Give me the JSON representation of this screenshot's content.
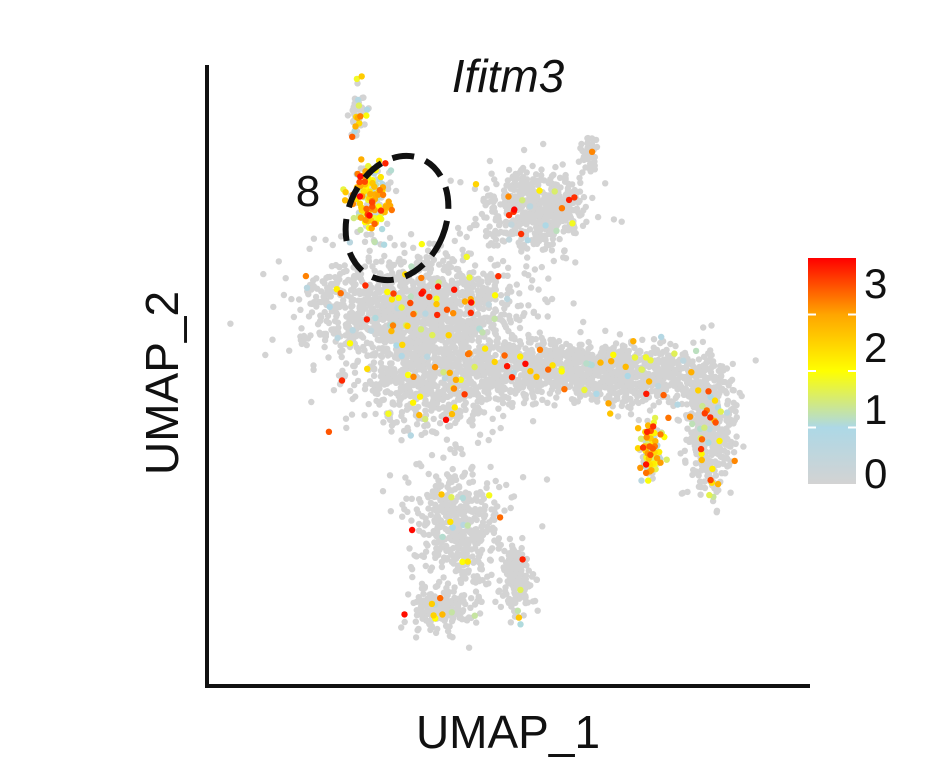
{
  "chart_data": {
    "type": "scatter",
    "title": "Ifitm3",
    "xlabel": "UMAP_1",
    "ylabel": "UMAP_2",
    "xlim": [
      -10,
      10
    ],
    "ylim": [
      -10,
      10
    ],
    "grid": false,
    "legend": "right",
    "colorbar": {
      "ticks": [
        "0",
        "1",
        "2",
        "3"
      ],
      "range": [
        0,
        3
      ],
      "colors": [
        "#d3d3d3",
        "#add8e6",
        "#ffff00",
        "#ffa500",
        "#ff0000"
      ]
    },
    "annotations": [
      {
        "label": "8",
        "x": -4.6,
        "y": 5.9,
        "shape": "dashed-ellipse"
      }
    ],
    "regions": [
      {
        "center": [
          -3.2,
          2.0
        ],
        "spread": [
          3.2,
          1.6
        ],
        "count": 1400,
        "expr_rate": 0.04
      },
      {
        "center": [
          -2.6,
          -0.3
        ],
        "spread": [
          2.4,
          1.6
        ],
        "count": 700,
        "expr_rate": 0.04
      },
      {
        "center": [
          1.2,
          0.0
        ],
        "spread": [
          2.8,
          0.8
        ],
        "count": 650,
        "expr_rate": 0.03
      },
      {
        "center": [
          4.5,
          -0.2
        ],
        "spread": [
          2.4,
          0.9
        ],
        "count": 550,
        "expr_rate": 0.03
      },
      {
        "center": [
          6.9,
          -1.8
        ],
        "spread": [
          0.8,
          1.9
        ],
        "count": 450,
        "expr_rate": 0.05
      },
      {
        "center": [
          1.0,
          5.2
        ],
        "spread": [
          1.6,
          1.2
        ],
        "count": 550,
        "expr_rate": 0.03
      },
      {
        "center": [
          -1.7,
          -5.0
        ],
        "spread": [
          1.4,
          2.0
        ],
        "count": 450,
        "expr_rate": 0.03
      },
      {
        "center": [
          -2.2,
          -7.8
        ],
        "spread": [
          1.0,
          0.6
        ],
        "count": 180,
        "expr_rate": 0.03
      },
      {
        "center": [
          0.3,
          -6.9
        ],
        "spread": [
          0.5,
          1.1
        ],
        "count": 160,
        "expr_rate": 0.03
      },
      {
        "center": [
          2.8,
          6.9
        ],
        "spread": [
          0.2,
          0.6
        ],
        "count": 40,
        "expr_rate": 0.02
      },
      {
        "center": [
          -5.1,
          8.2
        ],
        "spread": [
          0.25,
          0.9
        ],
        "count": 45,
        "expr_rate": 0.25
      },
      {
        "center": [
          -4.6,
          5.6
        ],
        "spread": [
          0.6,
          1.0
        ],
        "count": 180,
        "expr_rate": 0.75
      },
      {
        "center": [
          4.9,
          -2.7
        ],
        "spread": [
          0.35,
          0.85
        ],
        "count": 120,
        "expr_rate": 0.6
      }
    ]
  }
}
